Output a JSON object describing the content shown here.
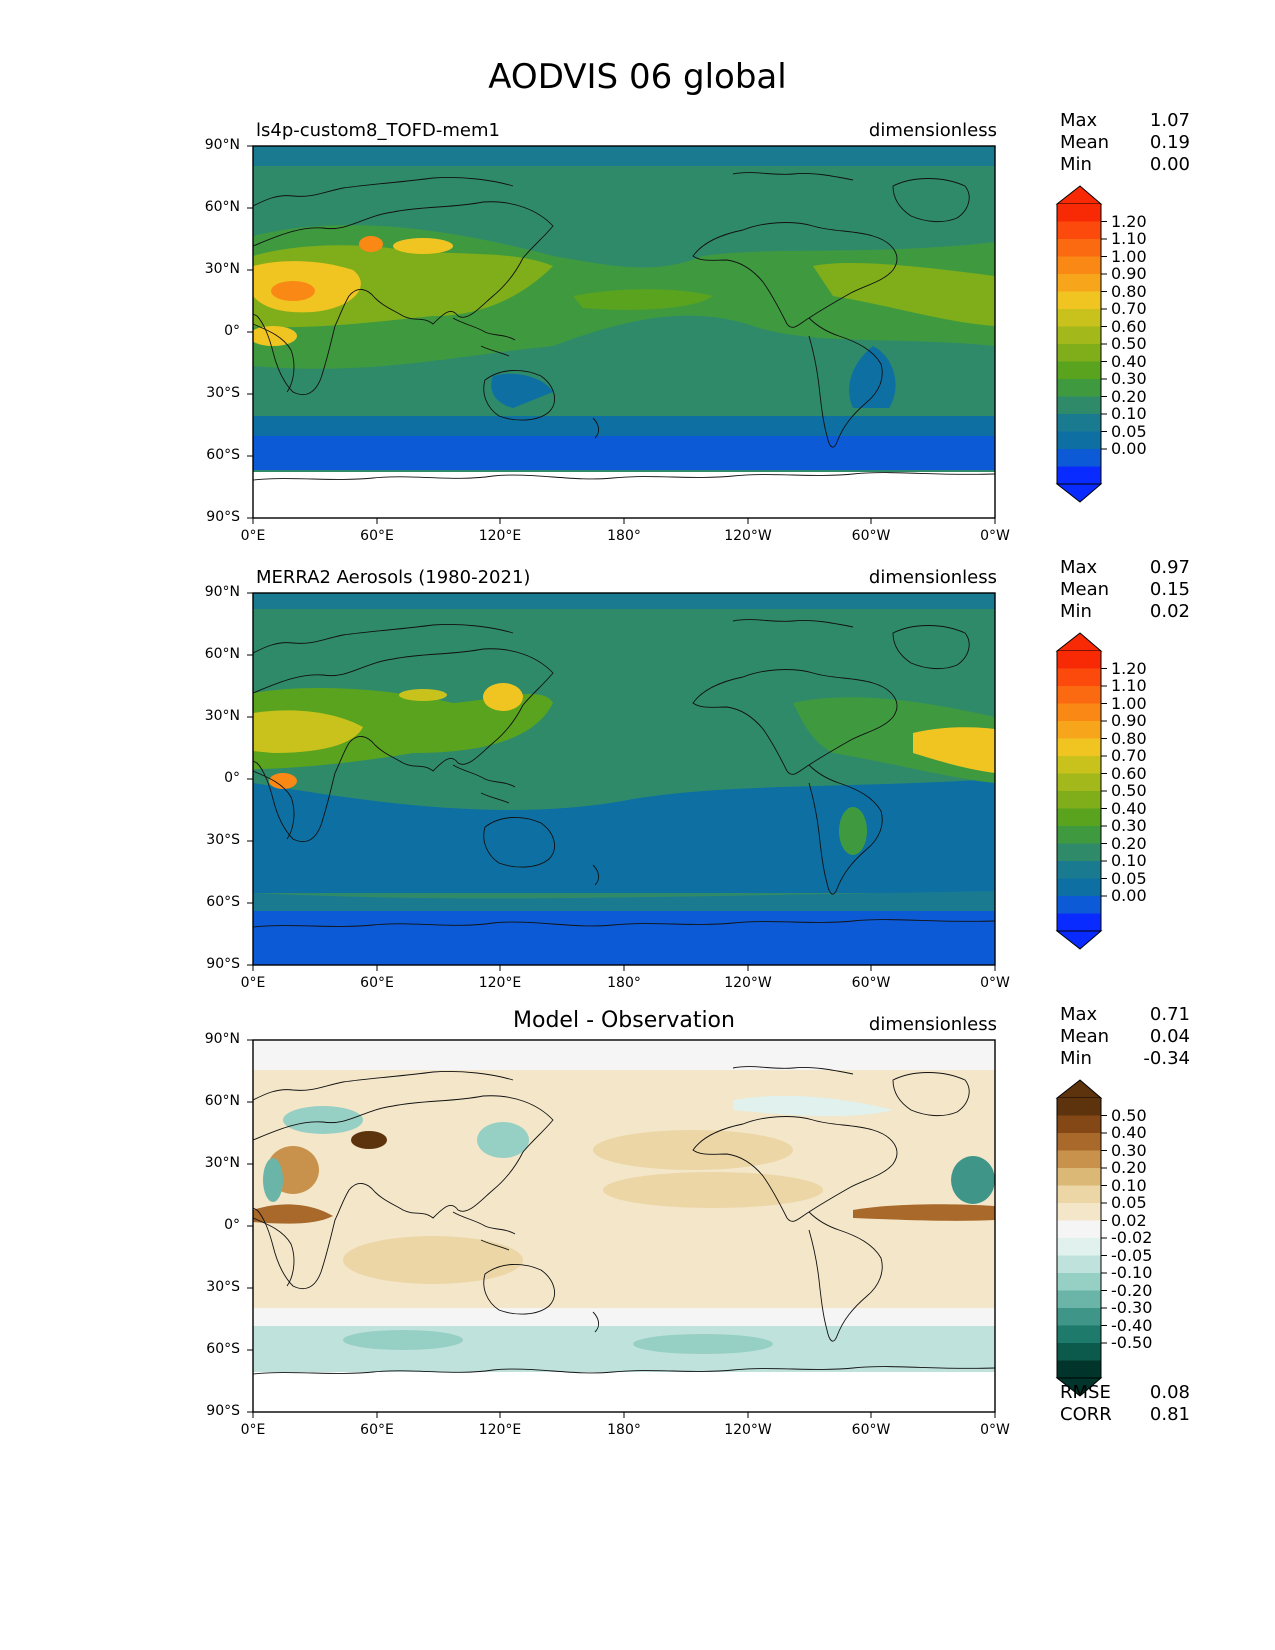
{
  "figure": {
    "title": "AODVIS 06 global"
  },
  "axes": {
    "lat_labels": [
      "90°N",
      "60°N",
      "30°N",
      "0°",
      "30°S",
      "60°S",
      "90°S"
    ],
    "lon_labels": [
      "0°E",
      "60°E",
      "120°E",
      "180°",
      "120°W",
      "60°W",
      "0°W"
    ]
  },
  "panels": [
    {
      "title_left": "ls4p-custom8_TOFD-mem1",
      "title_center": "",
      "units": "dimensionless",
      "stats": [
        {
          "name": "Max",
          "value": "1.07"
        },
        {
          "name": "Mean",
          "value": "0.19"
        },
        {
          "name": "Min",
          "value": "0.00"
        }
      ],
      "colorbar": {
        "labels": [
          "1.20",
          "1.10",
          "1.00",
          "0.90",
          "0.80",
          "0.70",
          "0.60",
          "0.50",
          "0.40",
          "0.30",
          "0.20",
          "0.10",
          "0.05",
          "0.00"
        ],
        "colors": [
          "#0a2bff",
          "#0d5ad6",
          "#0e6fa3",
          "#1a7b90",
          "#2f8a6a",
          "#3f9a3f",
          "#5aa31f",
          "#7fae1a",
          "#a3b81a",
          "#c9c21c",
          "#f0c522",
          "#f7a51b",
          "#fa8815",
          "#fb6a11",
          "#fb4a0c",
          "#f82a06"
        ],
        "under_color": "#0a2bff",
        "over_color": "#f82a06"
      }
    },
    {
      "title_left": "MERRA2 Aerosols (1980-2021)",
      "title_center": "",
      "units": "dimensionless",
      "stats": [
        {
          "name": "Max",
          "value": "0.97"
        },
        {
          "name": "Mean",
          "value": "0.15"
        },
        {
          "name": "Min",
          "value": "0.02"
        }
      ],
      "colorbar": {
        "labels": [
          "1.20",
          "1.10",
          "1.00",
          "0.90",
          "0.80",
          "0.70",
          "0.60",
          "0.50",
          "0.40",
          "0.30",
          "0.20",
          "0.10",
          "0.05",
          "0.00"
        ],
        "colors": [
          "#0a2bff",
          "#0d5ad6",
          "#0e6fa3",
          "#1a7b90",
          "#2f8a6a",
          "#3f9a3f",
          "#5aa31f",
          "#7fae1a",
          "#a3b81a",
          "#c9c21c",
          "#f0c522",
          "#f7a51b",
          "#fa8815",
          "#fb6a11",
          "#fb4a0c",
          "#f82a06"
        ],
        "under_color": "#0a2bff",
        "over_color": "#f82a06"
      }
    },
    {
      "title_left": "",
      "title_center": "Model - Observation",
      "units": "dimensionless",
      "stats": [
        {
          "name": "Max",
          "value": "0.71"
        },
        {
          "name": "Mean",
          "value": "0.04"
        },
        {
          "name": "Min",
          "value": "-0.34"
        }
      ],
      "extra_stats": [
        {
          "name": "RMSE",
          "value": "0.08"
        },
        {
          "name": "CORR",
          "value": "0.81"
        }
      ],
      "colorbar": {
        "labels": [
          "0.50",
          "0.40",
          "0.30",
          "0.20",
          "0.10",
          "0.05",
          "0.02",
          "-0.02",
          "-0.05",
          "-0.10",
          "-0.20",
          "-0.30",
          "-0.40",
          "-0.50"
        ],
        "colors": [
          "#01352b",
          "#0b5a4c",
          "#1e7a6a",
          "#3f9688",
          "#6bb5a8",
          "#96cfc4",
          "#bfe2dc",
          "#e0f1ee",
          "#f5f5f5",
          "#f3e6c9",
          "#ecd6a6",
          "#dcb877",
          "#c8924c",
          "#a8692a",
          "#844817",
          "#5c330d"
        ],
        "under_color": "#01352b",
        "over_color": "#5c330d"
      }
    }
  ]
}
